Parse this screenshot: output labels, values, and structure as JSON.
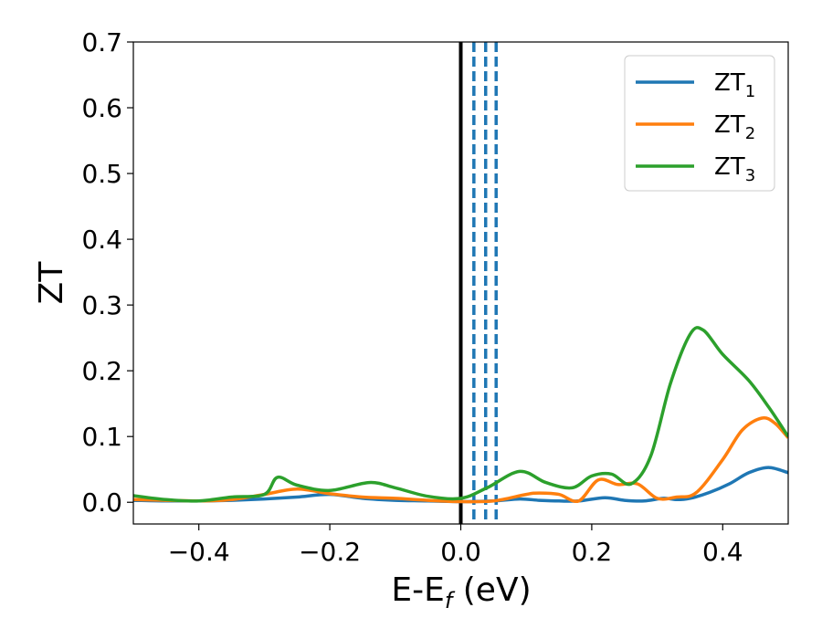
{
  "chart_data": {
    "type": "line",
    "xlabel": "E-E",
    "xlabel_sub": "f",
    "xlabel_unit": " (eV)",
    "ylabel": "ZT",
    "xlim": [
      -0.5,
      0.5
    ],
    "ylim": [
      -0.033,
      0.7
    ],
    "xticks": [
      -0.4,
      -0.2,
      0.0,
      0.2,
      0.4
    ],
    "xtick_labels": [
      "−0.4",
      "−0.2",
      "0.0",
      "0.2",
      "0.4"
    ],
    "yticks": [
      0.0,
      0.1,
      0.2,
      0.3,
      0.4,
      0.5,
      0.6,
      0.7
    ],
    "ytick_labels": [
      "0.0",
      "0.1",
      "0.2",
      "0.3",
      "0.4",
      "0.5",
      "0.6",
      "0.7"
    ],
    "grid": false,
    "legend_position": "top-right",
    "fermi_line": {
      "x": 0.0,
      "color": "#000000"
    },
    "dashed_lines": {
      "x": [
        0.02,
        0.038,
        0.054
      ],
      "color": "#1f77b4"
    },
    "series": [
      {
        "name": "ZT",
        "name_sub": "1",
        "color": "#1f77b4",
        "x": [
          -0.5,
          -0.45,
          -0.4,
          -0.35,
          -0.3,
          -0.25,
          -0.2,
          -0.15,
          -0.1,
          -0.05,
          0.0,
          0.05,
          0.09,
          0.12,
          0.15,
          0.18,
          0.22,
          0.25,
          0.28,
          0.31,
          0.33,
          0.35,
          0.38,
          0.41,
          0.44,
          0.47,
          0.5
        ],
        "y": [
          0.003,
          0.002,
          0.002,
          0.003,
          0.005,
          0.008,
          0.012,
          0.006,
          0.003,
          0.002,
          0.001,
          0.002,
          0.005,
          0.003,
          0.002,
          0.002,
          0.007,
          0.003,
          0.002,
          0.006,
          0.004,
          0.006,
          0.015,
          0.028,
          0.045,
          0.053,
          0.045
        ]
      },
      {
        "name": "ZT",
        "name_sub": "2",
        "color": "#ff7f0e",
        "x": [
          -0.5,
          -0.45,
          -0.4,
          -0.35,
          -0.3,
          -0.25,
          -0.2,
          -0.15,
          -0.1,
          -0.05,
          0.0,
          0.05,
          0.1,
          0.12,
          0.15,
          0.18,
          0.21,
          0.24,
          0.27,
          0.3,
          0.33,
          0.36,
          0.4,
          0.43,
          0.46,
          0.48,
          0.5
        ],
        "y": [
          0.004,
          0.003,
          0.002,
          0.004,
          0.012,
          0.02,
          0.013,
          0.008,
          0.006,
          0.003,
          0.001,
          0.002,
          0.012,
          0.014,
          0.012,
          0.002,
          0.034,
          0.027,
          0.028,
          0.006,
          0.008,
          0.015,
          0.065,
          0.11,
          0.128,
          0.12,
          0.098
        ]
      },
      {
        "name": "ZT",
        "name_sub": "3",
        "color": "#2ca02c",
        "x": [
          -0.5,
          -0.45,
          -0.4,
          -0.35,
          -0.3,
          -0.28,
          -0.25,
          -0.2,
          -0.14,
          -0.1,
          -0.05,
          0.0,
          0.04,
          0.09,
          0.13,
          0.17,
          0.2,
          0.23,
          0.26,
          0.29,
          0.32,
          0.35,
          0.37,
          0.4,
          0.44,
          0.47,
          0.5
        ],
        "y": [
          0.01,
          0.004,
          0.002,
          0.008,
          0.012,
          0.038,
          0.026,
          0.018,
          0.03,
          0.022,
          0.009,
          0.006,
          0.022,
          0.047,
          0.03,
          0.022,
          0.04,
          0.043,
          0.028,
          0.07,
          0.18,
          0.255,
          0.262,
          0.225,
          0.185,
          0.145,
          0.1
        ]
      }
    ]
  }
}
